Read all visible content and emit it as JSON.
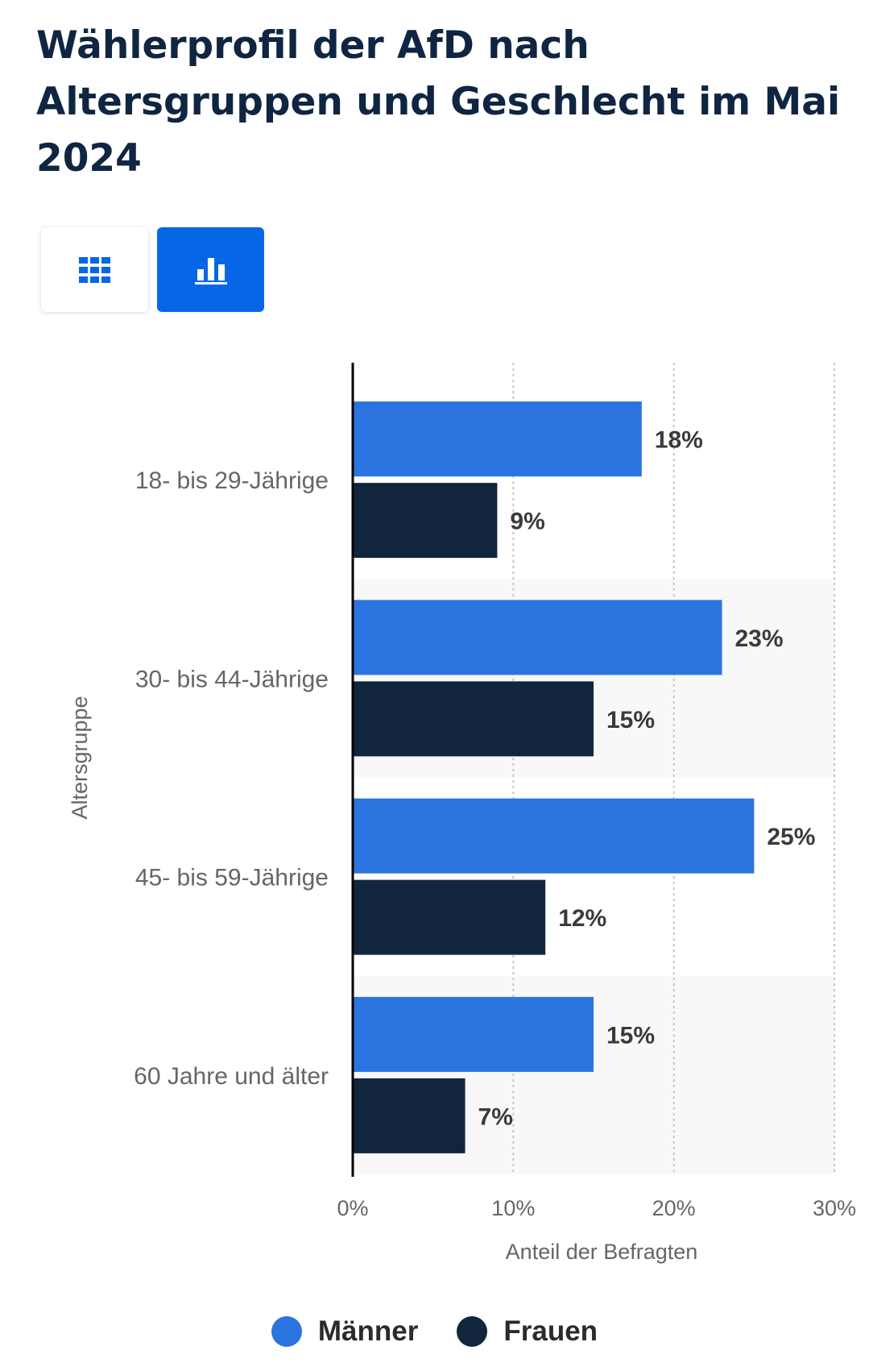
{
  "title": "Wählerprofil der AfD nach Altersgruppen und Geschlecht im Mai 2024",
  "view_toggle": {
    "table_icon": "grid-icon",
    "chart_icon": "bar-chart-icon",
    "active": "chart"
  },
  "colors": {
    "maenner": "#2b74df",
    "frauen": "#11263d",
    "active_button": "#0666e5",
    "text": "#0f2541",
    "axis_text": "#666666"
  },
  "chart_data": {
    "type": "bar",
    "orientation": "horizontal",
    "categories": [
      "18- bis 29-Jährige",
      "30- bis 44-Jährige",
      "45- bis 59-Jährige",
      "60 Jahre und älter"
    ],
    "series": [
      {
        "name": "Männer",
        "values": [
          18,
          23,
          25,
          15
        ],
        "labels": [
          "18%",
          "23%",
          "25%",
          "15%"
        ]
      },
      {
        "name": "Frauen",
        "values": [
          9,
          15,
          12,
          7
        ],
        "labels": [
          "9%",
          "15%",
          "12%",
          "7%"
        ]
      }
    ],
    "xlabel": "Anteil der Befragten",
    "ylabel": "Altersgruppe",
    "xlim": [
      0,
      30
    ],
    "xticks": [
      "0%",
      "10%",
      "20%",
      "30%"
    ],
    "grid": true,
    "legend": "bottom-center"
  }
}
